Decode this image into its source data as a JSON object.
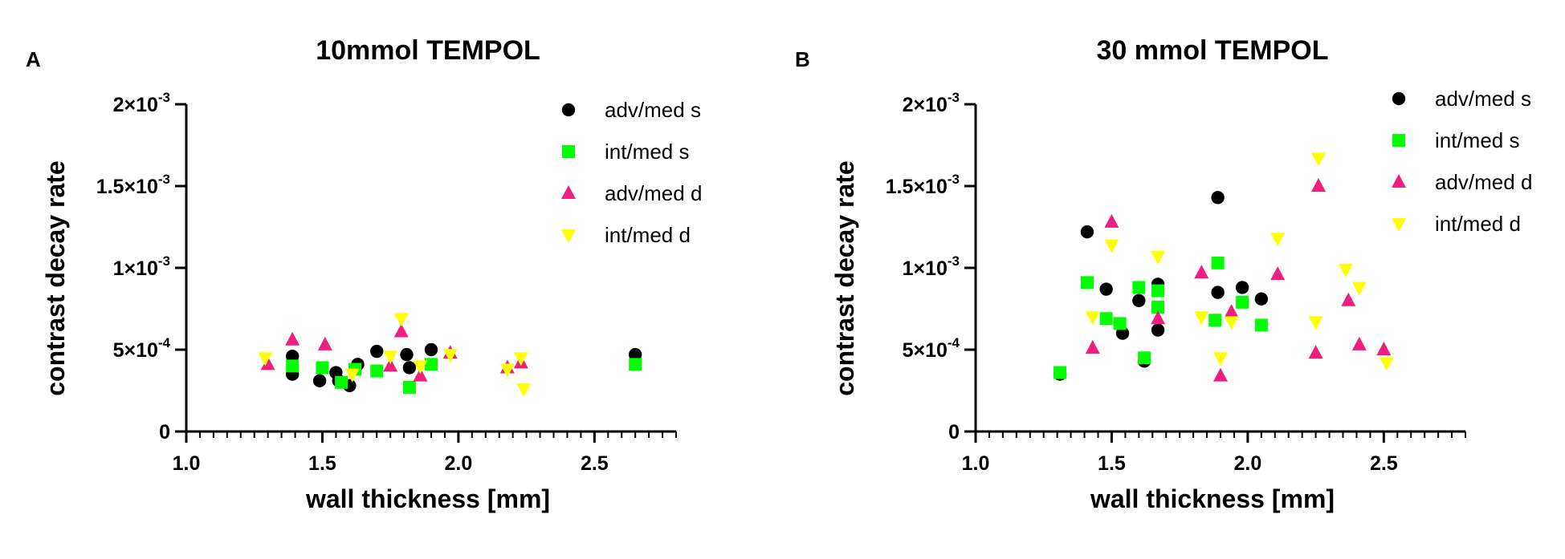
{
  "chart_data": [
    {
      "panel_label": "A",
      "type": "scatter",
      "title": "10mmol TEMPOL",
      "xlabel": "wall thickness [mm]",
      "ylabel": "contrast decay rate",
      "xlim": [
        1.0,
        2.8
      ],
      "ylim": [
        0,
        0.002
      ],
      "x_ticks": [
        1.0,
        1.5,
        2.0,
        2.5
      ],
      "x_tick_labels": [
        "1.0",
        "1.5",
        "2.0",
        "2.5"
      ],
      "y_ticks": [
        0,
        0.0005,
        0.001,
        0.0015,
        0.002
      ],
      "y_tick_labels": [
        {
          "mantissa": "0",
          "exponent": ""
        },
        {
          "mantissa": "5×10",
          "exponent": "-4"
        },
        {
          "mantissa": "1×10",
          "exponent": "-3"
        },
        {
          "mantissa": "1.5×10",
          "exponent": "-3"
        },
        {
          "mantissa": "2×10",
          "exponent": "-3"
        }
      ],
      "legend_position": "top-right",
      "series": [
        {
          "name": "adv/med s",
          "marker": "circle",
          "color": "#000000",
          "x": [
            1.39,
            1.39,
            1.49,
            1.55,
            1.56,
            1.6,
            1.63,
            1.7,
            1.81,
            1.82,
            1.9,
            2.65
          ],
          "y": [
            0.00046,
            0.00035,
            0.00031,
            0.00036,
            0.00031,
            0.00028,
            0.00041,
            0.00049,
            0.00047,
            0.00039,
            0.0005,
            0.00047
          ]
        },
        {
          "name": "int/med s",
          "marker": "square",
          "color": "#00ff00",
          "x": [
            1.39,
            1.5,
            1.57,
            1.62,
            1.7,
            1.82,
            1.9,
            2.65
          ],
          "y": [
            0.0004,
            0.00039,
            0.0003,
            0.00038,
            0.00037,
            0.00027,
            0.00041,
            0.00041
          ]
        },
        {
          "name": "adv/med d",
          "marker": "triangle-up",
          "color": "#ee1f7e",
          "x": [
            1.3,
            1.39,
            1.51,
            1.75,
            1.79,
            1.86,
            1.97,
            2.18,
            2.23
          ],
          "y": [
            0.00041,
            0.00056,
            0.00053,
            0.0004,
            0.00061,
            0.00034,
            0.00048,
            0.00039,
            0.00042
          ]
        },
        {
          "name": "int/med d",
          "marker": "triangle-down",
          "color": "#ffff00",
          "x": [
            1.29,
            1.61,
            1.75,
            1.79,
            1.86,
            1.97,
            2.18,
            2.23,
            2.24
          ],
          "y": [
            0.00045,
            0.00035,
            0.00046,
            0.00069,
            0.0004,
            0.00047,
            0.00038,
            0.00045,
            0.00026
          ]
        }
      ]
    },
    {
      "panel_label": "B",
      "type": "scatter",
      "title": "30 mmol TEMPOL",
      "xlabel": "wall thickness [mm]",
      "ylabel": "contrast decay rate",
      "xlim": [
        1.0,
        2.8
      ],
      "ylim": [
        0,
        0.002
      ],
      "x_ticks": [
        1.0,
        1.5,
        2.0,
        2.5
      ],
      "x_tick_labels": [
        "1.0",
        "1.5",
        "2.0",
        "2.5"
      ],
      "y_ticks": [
        0,
        0.0005,
        0.001,
        0.0015,
        0.002
      ],
      "y_tick_labels": [
        {
          "mantissa": "0",
          "exponent": ""
        },
        {
          "mantissa": "5×10",
          "exponent": "-4"
        },
        {
          "mantissa": "1×10",
          "exponent": "-3"
        },
        {
          "mantissa": "1.5×10",
          "exponent": "-3"
        },
        {
          "mantissa": "2×10",
          "exponent": "-3"
        }
      ],
      "legend_position": "top-right",
      "series": [
        {
          "name": "adv/med s",
          "marker": "circle",
          "color": "#000000",
          "x": [
            1.31,
            1.41,
            1.48,
            1.54,
            1.6,
            1.62,
            1.67,
            1.67,
            1.89,
            1.89,
            1.98,
            2.05
          ],
          "y": [
            0.00035,
            0.00122,
            0.00087,
            0.0006,
            0.0008,
            0.00043,
            0.0009,
            0.00062,
            0.00143,
            0.00085,
            0.00088,
            0.00081
          ]
        },
        {
          "name": "int/med s",
          "marker": "square",
          "color": "#00ff00",
          "x": [
            1.31,
            1.41,
            1.48,
            1.53,
            1.6,
            1.62,
            1.67,
            1.67,
            1.88,
            1.89,
            1.98,
            2.05
          ],
          "y": [
            0.00036,
            0.00091,
            0.00069,
            0.00066,
            0.00088,
            0.00045,
            0.00086,
            0.00076,
            0.00068,
            0.00103,
            0.00079,
            0.00065
          ]
        },
        {
          "name": "adv/med d",
          "marker": "triangle-up",
          "color": "#ee1f7e",
          "x": [
            1.43,
            1.5,
            1.67,
            1.83,
            1.9,
            1.94,
            2.11,
            2.25,
            2.26,
            2.37,
            2.41,
            2.5
          ],
          "y": [
            0.00051,
            0.00128,
            0.00069,
            0.00097,
            0.00034,
            0.00073,
            0.00096,
            0.00048,
            0.0015,
            0.0008,
            0.00053,
            0.0005
          ]
        },
        {
          "name": "int/med d",
          "marker": "triangle-down",
          "color": "#ffff00",
          "x": [
            1.43,
            1.5,
            1.67,
            1.83,
            1.9,
            1.94,
            2.11,
            2.25,
            2.26,
            2.36,
            2.41,
            2.51
          ],
          "y": [
            0.0007,
            0.00114,
            0.00107,
            0.0007,
            0.00045,
            0.00067,
            0.00118,
            0.00067,
            0.00167,
            0.00099,
            0.00088,
            0.00042
          ]
        }
      ]
    }
  ]
}
